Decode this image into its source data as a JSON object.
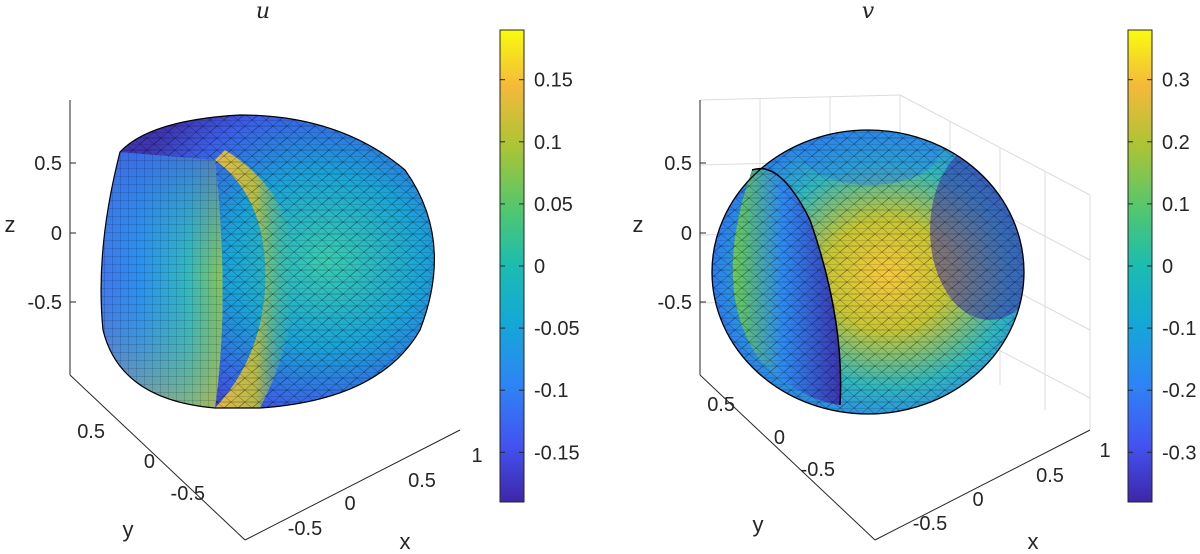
{
  "chart_data": [
    {
      "type": "surface3d",
      "title": "u",
      "xlabel": "x",
      "ylabel": "y",
      "zlabel": "z",
      "x_ticks": [
        "-0.5",
        "0",
        "0.5",
        "1"
      ],
      "y_ticks": [
        "-0.5",
        "0",
        "0.5"
      ],
      "z_ticks": [
        "-0.5",
        "0",
        "0.5"
      ],
      "colorbar": {
        "colormap": "parula",
        "range": [
          -0.19,
          0.19
        ],
        "ticks": [
          "0.15",
          "0.1",
          "0.05",
          "0",
          "-0.05",
          "-0.1",
          "-0.15"
        ],
        "tick_values": [
          0.15,
          0.1,
          0.05,
          0,
          -0.05,
          -0.1,
          -0.15
        ]
      },
      "grid": false,
      "shape": "unit ball cut by plane x = -0.5, triangulated mesh"
    },
    {
      "type": "surface3d",
      "title": "v",
      "xlabel": "x",
      "ylabel": "y",
      "zlabel": "z",
      "x_ticks": [
        "-0.5",
        "0",
        "0.5",
        "1"
      ],
      "y_ticks": [
        "-0.5",
        "0",
        "0.5"
      ],
      "z_ticks": [
        "-0.5",
        "0",
        "0.5"
      ],
      "colorbar": {
        "colormap": "parula",
        "range": [
          -0.38,
          0.38
        ],
        "ticks": [
          "0.3",
          "0.2",
          "0.1",
          "0",
          "-0.1",
          "-0.2",
          "-0.3"
        ],
        "tick_values": [
          0.3,
          0.2,
          0.1,
          0,
          -0.1,
          -0.2,
          -0.3
        ]
      },
      "grid": true,
      "shape": "unit ball, triangulated mesh"
    }
  ]
}
